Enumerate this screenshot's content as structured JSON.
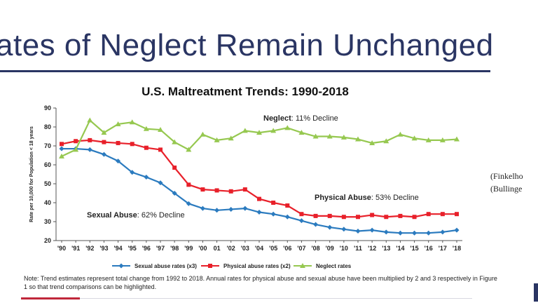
{
  "slide": {
    "title": "ates of Neglect Remain Unchanged",
    "citations": [
      "(Finkelho",
      "(Bullinge"
    ],
    "note": "Note: Trend estimates represent total change from 1992 to 2018. Annual rates for physical abuse and sexual abuse have been multiplied by 2 and 3 respectively in Figure 1 so that trend comparisons can be highlighted.",
    "colors": {
      "title": "#2a3563",
      "accent": "#c0273a"
    }
  },
  "chart_data": {
    "type": "line",
    "title": "U.S. Maltreatment Trends:  1990-2018",
    "xlabel": "",
    "ylabel": "Rate per 10,000 for Population < 18 years",
    "ylim": [
      20,
      90
    ],
    "yticks": [
      20,
      30,
      40,
      50,
      60,
      70,
      80,
      90
    ],
    "grid": false,
    "categories": [
      "'90",
      "'91",
      "'92",
      "'93",
      "'94",
      "'95",
      "'96",
      "'97",
      "'98",
      "'99",
      "'00",
      "01",
      "'02",
      "'03",
      "'04",
      "'05",
      "'06",
      "'07",
      "'08",
      "'09",
      "'10",
      "'11",
      "'12",
      "'13",
      "'14",
      "'15",
      "'16",
      "'17",
      "'18"
    ],
    "series": [
      {
        "name": "Sexual abuse rates (x3)",
        "color": "#2b7bbf",
        "marker": "diamond",
        "values": [
          68.5,
          68.5,
          68,
          65.5,
          62,
          56,
          53.5,
          50.5,
          45,
          39.5,
          37,
          36,
          36.5,
          37,
          35,
          34,
          32.5,
          30.5,
          28.5,
          27,
          26,
          25,
          25.5,
          24.5,
          24,
          24,
          24,
          24.5,
          25.5
        ]
      },
      {
        "name": "Physical abuse rates (x2)",
        "color": "#e8202a",
        "marker": "square",
        "values": [
          71,
          72.5,
          73,
          72,
          71.5,
          71,
          69,
          68,
          58.5,
          49.5,
          47,
          46.5,
          46,
          47,
          42,
          40,
          38.5,
          34,
          33,
          33,
          32.5,
          32.5,
          33.5,
          32.5,
          33,
          32.5,
          34,
          34,
          34
        ]
      },
      {
        "name": "Neglect rates",
        "color": "#96c850",
        "marker": "triangle",
        "values": [
          64.5,
          68,
          83.5,
          77,
          81.5,
          82.5,
          79,
          78.5,
          72,
          68,
          76,
          73,
          74,
          78,
          77,
          78,
          79.5,
          77,
          75,
          75,
          74.5,
          73.5,
          71.5,
          72.5,
          76,
          74,
          73,
          73,
          73.5
        ]
      }
    ],
    "annotations": [
      {
        "bold": "Neglect",
        "rest": ": 11% Decline"
      },
      {
        "bold": "Physical Abuse",
        "rest": ": 53% Decline"
      },
      {
        "bold": "Sexual Abuse",
        "rest": ":  62% Decline"
      }
    ]
  }
}
